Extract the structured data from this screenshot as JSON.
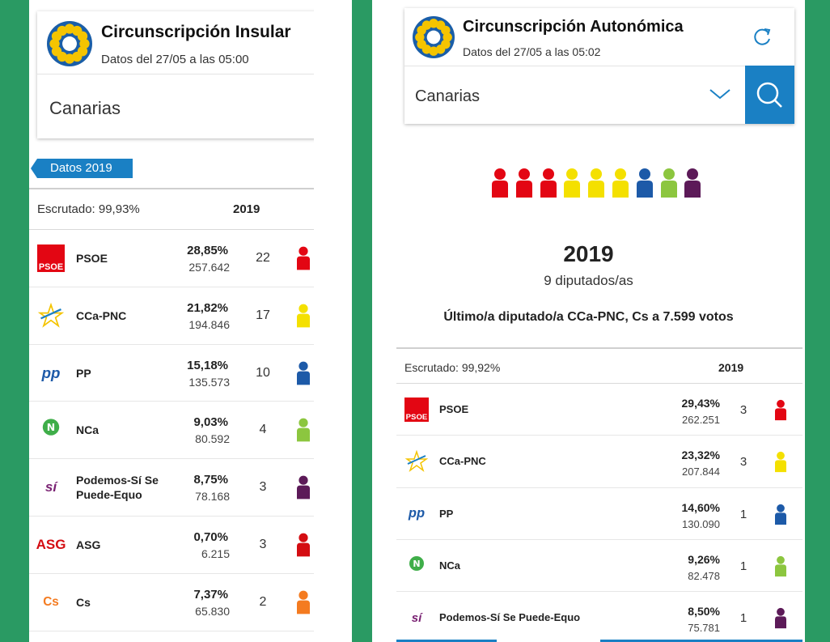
{
  "colors": {
    "psoe": "#e30613",
    "cca": "#f4e000",
    "pp": "#1d5aa8",
    "nca": "#8cc63f",
    "podemos": "#5c1a58",
    "asg": "#d40d12",
    "cs": "#f47b20",
    "accent": "#1a80c4",
    "background": "#2a9a63"
  },
  "left": {
    "title": "Circunscripción Insular",
    "subtitle": "Datos del 27/05 a las 05:00",
    "region": "Canarias",
    "tab": "Datos 2019",
    "scrutiny": "Escrutado: 99,93%",
    "year_header": "2019",
    "parties": [
      {
        "logo": "PSOE",
        "name": "PSOE",
        "pct": "28,85%",
        "votes": "257.642",
        "seats": "22",
        "color": "#e30613"
      },
      {
        "logo": "coalición canaria",
        "name": "CCa-PNC",
        "pct": "21,82%",
        "votes": "194.846",
        "seats": "17",
        "color": "#f4e000"
      },
      {
        "logo": "PP",
        "name": "PP",
        "pct": "15,18%",
        "votes": "135.573",
        "seats": "10",
        "color": "#1d5aa8"
      },
      {
        "logo": "NUEVA CANARIAS",
        "name": "NCa",
        "pct": "9,03%",
        "votes": "80.592",
        "seats": "4",
        "color": "#8cc63f"
      },
      {
        "logo": "SÍ PODEMOS CANARIAS",
        "name": "Podemos-Sí Se",
        "name2": "Puede-Equo",
        "pct": "8,75%",
        "votes": "78.168",
        "seats": "3",
        "color": "#5c1a58"
      },
      {
        "logo": "ASG",
        "name": "ASG",
        "pct": "0,70%",
        "votes": "6.215",
        "seats": "3",
        "color": "#d40d12"
      },
      {
        "logo": "Cs Ciudadanos",
        "name": "Cs",
        "pct": "7,37%",
        "votes": "65.830",
        "seats": "2",
        "color": "#f47b20"
      }
    ]
  },
  "right": {
    "title": "Circunscripción Autonómica",
    "subtitle": "Datos del 27/05 a las 05:02",
    "region": "Canarias",
    "seat_colors": [
      "#e30613",
      "#e30613",
      "#e30613",
      "#f4e000",
      "#f4e000",
      "#f4e000",
      "#1d5aa8",
      "#8cc63f",
      "#5c1a58"
    ],
    "year": "2019",
    "deputies": "9 diputados/as",
    "last_deputy": "Último/a diputado/a CCa-PNC, Cs a 7.599 votos",
    "scrutiny": "Escrutado: 99,92%",
    "year_header": "2019",
    "parties": [
      {
        "logo": "PSOE",
        "name": "PSOE",
        "pct": "29,43%",
        "votes": "262.251",
        "seats": "3",
        "color": "#e30613"
      },
      {
        "logo": "coalición canaria",
        "name": "CCa-PNC",
        "pct": "23,32%",
        "votes": "207.844",
        "seats": "3",
        "color": "#f4e000"
      },
      {
        "logo": "PP",
        "name": "PP",
        "pct": "14,60%",
        "votes": "130.090",
        "seats": "1",
        "color": "#1d5aa8"
      },
      {
        "logo": "NUEVA CANARIAS",
        "name": "NCa",
        "pct": "9,26%",
        "votes": "82.478",
        "seats": "1",
        "color": "#8cc63f"
      },
      {
        "logo": "SÍ PODEMOS CANARIAS",
        "name": "Podemos-Sí Se Puede-Equo",
        "pct": "8,50%",
        "votes": "75.781",
        "seats": "1",
        "color": "#5c1a58"
      }
    ]
  }
}
